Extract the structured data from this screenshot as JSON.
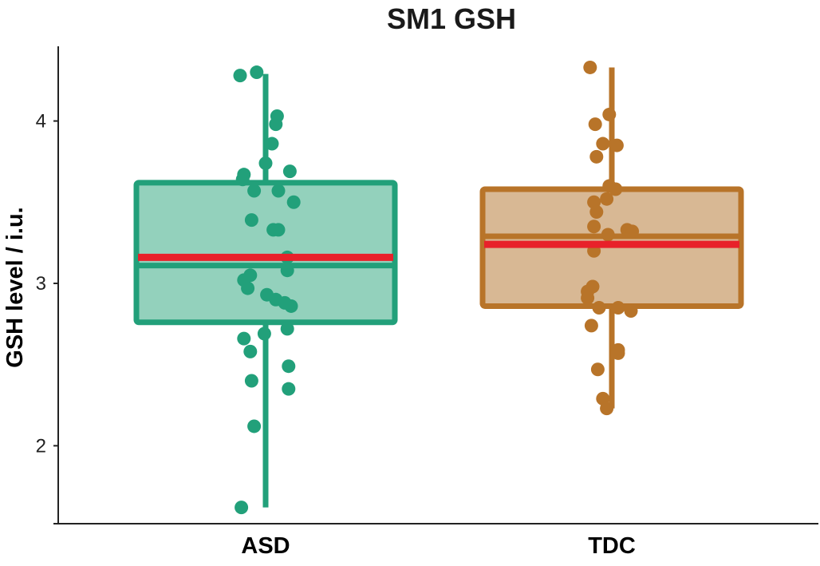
{
  "chart_data": {
    "type": "box",
    "title": "SM1 GSH",
    "xlabel": "",
    "ylabel": "GSH level / i.u.",
    "ylim": [
      1.52,
      4.46
    ],
    "yticks": [
      2,
      3,
      4
    ],
    "categories": [
      "ASD",
      "TDC"
    ],
    "grid": false,
    "legend": "none",
    "mean_color": "#e8212a",
    "groups": [
      {
        "category": "ASD",
        "color": "#22a07a",
        "fill": "#93d1bc",
        "whisker_low": 1.62,
        "q1": 2.76,
        "median": 3.11,
        "q3": 3.62,
        "whisker_high": 4.29,
        "mean": 3.16,
        "points": [
          [
            -0.2,
            4.28
          ],
          [
            -0.07,
            4.3
          ],
          [
            0.09,
            4.03
          ],
          [
            0.08,
            3.98
          ],
          [
            0.05,
            3.86
          ],
          [
            0.0,
            3.74
          ],
          [
            0.19,
            3.69
          ],
          [
            -0.17,
            3.67
          ],
          [
            -0.18,
            3.64
          ],
          [
            -0.09,
            3.57
          ],
          [
            0.1,
            3.57
          ],
          [
            0.22,
            3.5
          ],
          [
            -0.11,
            3.39
          ],
          [
            0.06,
            3.33
          ],
          [
            0.1,
            3.33
          ],
          [
            0.17,
            3.16
          ],
          [
            0.17,
            3.08
          ],
          [
            -0.12,
            3.05
          ],
          [
            -0.17,
            3.02
          ],
          [
            -0.14,
            2.97
          ],
          [
            0.01,
            2.93
          ],
          [
            0.08,
            2.9
          ],
          [
            0.15,
            2.88
          ],
          [
            0.2,
            2.86
          ],
          [
            -0.17,
            2.66
          ],
          [
            -0.01,
            2.69
          ],
          [
            0.17,
            2.72
          ],
          [
            -0.12,
            2.58
          ],
          [
            0.18,
            2.49
          ],
          [
            -0.11,
            2.4
          ],
          [
            0.18,
            2.35
          ],
          [
            -0.09,
            2.12
          ],
          [
            -0.19,
            1.62
          ]
        ]
      },
      {
        "category": "TDC",
        "color": "#b87429",
        "fill": "#d8b894",
        "whisker_low": 2.23,
        "q1": 2.86,
        "median": 3.29,
        "q3": 3.58,
        "whisker_high": 4.33,
        "mean": 3.24,
        "points": [
          [
            -0.17,
            4.33
          ],
          [
            -0.02,
            4.04
          ],
          [
            -0.13,
            3.98
          ],
          [
            0.04,
            3.85
          ],
          [
            -0.07,
            3.86
          ],
          [
            -0.12,
            3.78
          ],
          [
            -0.02,
            3.6
          ],
          [
            0.03,
            3.58
          ],
          [
            -0.04,
            3.52
          ],
          [
            -0.14,
            3.5
          ],
          [
            -0.12,
            3.44
          ],
          [
            -0.14,
            3.35
          ],
          [
            -0.03,
            3.3
          ],
          [
            0.12,
            3.33
          ],
          [
            0.16,
            3.32
          ],
          [
            -0.14,
            3.2
          ],
          [
            -0.15,
            2.98
          ],
          [
            -0.19,
            2.95
          ],
          [
            -0.19,
            2.91
          ],
          [
            -0.1,
            2.85
          ],
          [
            0.05,
            2.85
          ],
          [
            0.15,
            2.83
          ],
          [
            -0.16,
            2.74
          ],
          [
            0.05,
            2.59
          ],
          [
            0.05,
            2.57
          ],
          [
            -0.11,
            2.47
          ],
          [
            -0.07,
            2.29
          ],
          [
            -0.04,
            2.23
          ]
        ]
      }
    ]
  }
}
